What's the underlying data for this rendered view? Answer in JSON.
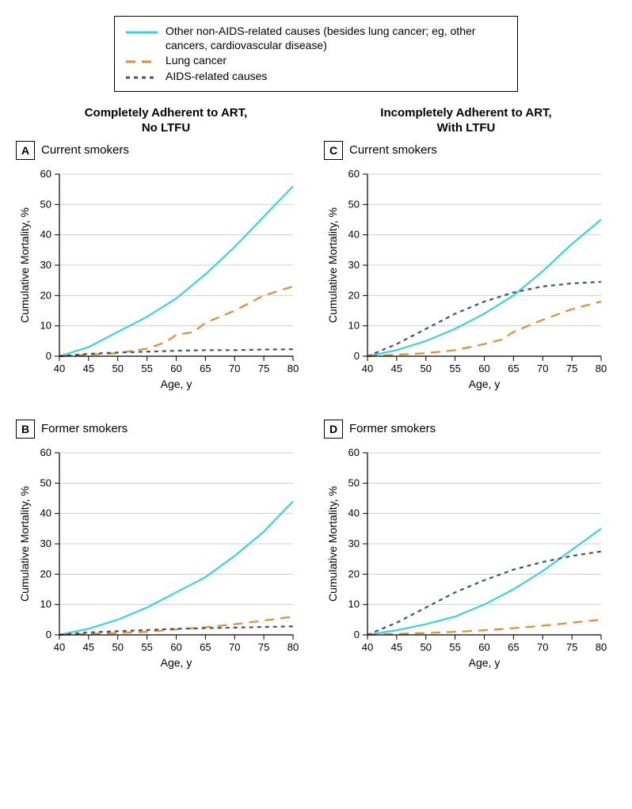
{
  "legend": {
    "items": [
      {
        "label": "Other non-AIDS-related causes (besides lung cancer; eg, other cancers, cardiovascular disease)",
        "color": "#33d4e8",
        "dash": ""
      },
      {
        "label": "Lung cancer",
        "color": "#e98a2e",
        "dash": "12,8"
      },
      {
        "label": "AIDS-related causes",
        "color": "#3e5a5a",
        "dash": "5,5"
      }
    ]
  },
  "columns": {
    "left": "Completely Adherent to ART,\nNo LTFU",
    "right": "Incompletely Adherent to ART,\nWith LTFU"
  },
  "axis": {
    "xlabel": "Age, y",
    "ylabel": "Cumulative Mortality, %",
    "xlim": [
      40,
      80
    ],
    "ylim": [
      0,
      60
    ],
    "xticks": [
      40,
      45,
      50,
      55,
      60,
      65,
      70,
      75,
      80
    ],
    "yticks": [
      0,
      10,
      20,
      30,
      40,
      50,
      60
    ],
    "grid_color": "#cfcfcf",
    "tick_fontsize": 13,
    "label_fontsize": 14,
    "background": "#ffffff"
  },
  "lineStyle": {
    "width": 2.2
  },
  "panels": [
    {
      "letter": "A",
      "title": "Current smokers",
      "series": [
        {
          "key": "other",
          "color": "#33d4e8",
          "dash": "",
          "pts": [
            [
              40,
              0
            ],
            [
              45,
              3
            ],
            [
              50,
              8
            ],
            [
              55,
              13
            ],
            [
              60,
              19
            ],
            [
              65,
              27
            ],
            [
              70,
              36
            ],
            [
              75,
              46
            ],
            [
              80,
              56
            ]
          ]
        },
        {
          "key": "lung",
          "color": "#e98a2e",
          "dash": "12,8",
          "pts": [
            [
              40,
              0
            ],
            [
              45,
              0.5
            ],
            [
              50,
              1
            ],
            [
              55,
              2.5
            ],
            [
              58,
              4.5
            ],
            [
              60,
              7
            ],
            [
              63,
              8
            ],
            [
              65,
              11
            ],
            [
              70,
              15
            ],
            [
              75,
              20
            ],
            [
              80,
              23
            ]
          ]
        },
        {
          "key": "aids",
          "color": "#3e5a5a",
          "dash": "5,5",
          "pts": [
            [
              40,
              0
            ],
            [
              45,
              0.8
            ],
            [
              50,
              1.2
            ],
            [
              55,
              1.5
            ],
            [
              60,
              1.8
            ],
            [
              65,
              2
            ],
            [
              70,
              2
            ],
            [
              75,
              2.2
            ],
            [
              80,
              2.3
            ]
          ]
        }
      ]
    },
    {
      "letter": "C",
      "title": "Current smokers",
      "series": [
        {
          "key": "other",
          "color": "#33d4e8",
          "dash": "",
          "pts": [
            [
              40,
              0
            ],
            [
              45,
              2
            ],
            [
              50,
              5
            ],
            [
              55,
              9
            ],
            [
              60,
              14
            ],
            [
              65,
              20
            ],
            [
              70,
              28
            ],
            [
              75,
              37
            ],
            [
              80,
              45
            ]
          ]
        },
        {
          "key": "aids",
          "color": "#3e5a5a",
          "dash": "5,5",
          "pts": [
            [
              40,
              0
            ],
            [
              45,
              4
            ],
            [
              50,
              9
            ],
            [
              55,
              14
            ],
            [
              60,
              18
            ],
            [
              65,
              21
            ],
            [
              70,
              23
            ],
            [
              75,
              24
            ],
            [
              80,
              24.5
            ]
          ]
        },
        {
          "key": "lung",
          "color": "#e98a2e",
          "dash": "12,8",
          "pts": [
            [
              40,
              0
            ],
            [
              45,
              0.5
            ],
            [
              50,
              1
            ],
            [
              55,
              2
            ],
            [
              60,
              4
            ],
            [
              63,
              5.5
            ],
            [
              65,
              8
            ],
            [
              70,
              12
            ],
            [
              75,
              15.5
            ],
            [
              80,
              18
            ]
          ]
        }
      ]
    },
    {
      "letter": "B",
      "title": "Former smokers",
      "series": [
        {
          "key": "other",
          "color": "#33d4e8",
          "dash": "",
          "pts": [
            [
              40,
              0
            ],
            [
              45,
              2
            ],
            [
              50,
              5
            ],
            [
              55,
              9
            ],
            [
              60,
              14
            ],
            [
              65,
              19
            ],
            [
              70,
              26
            ],
            [
              75,
              34
            ],
            [
              80,
              44
            ]
          ]
        },
        {
          "key": "lung",
          "color": "#e98a2e",
          "dash": "12,8",
          "pts": [
            [
              40,
              0
            ],
            [
              45,
              0.3
            ],
            [
              50,
              0.6
            ],
            [
              55,
              1
            ],
            [
              60,
              1.8
            ],
            [
              65,
              2.5
            ],
            [
              70,
              3.5
            ],
            [
              75,
              4.7
            ],
            [
              80,
              6
            ]
          ]
        },
        {
          "key": "aids",
          "color": "#3e5a5a",
          "dash": "5,5",
          "pts": [
            [
              40,
              0
            ],
            [
              45,
              0.8
            ],
            [
              50,
              1.2
            ],
            [
              55,
              1.6
            ],
            [
              60,
              2
            ],
            [
              65,
              2.2
            ],
            [
              70,
              2.4
            ],
            [
              75,
              2.6
            ],
            [
              80,
              2.8
            ]
          ]
        }
      ]
    },
    {
      "letter": "D",
      "title": "Former smokers",
      "series": [
        {
          "key": "other",
          "color": "#33d4e8",
          "dash": "",
          "pts": [
            [
              40,
              0
            ],
            [
              45,
              1.5
            ],
            [
              50,
              3.5
            ],
            [
              55,
              6
            ],
            [
              60,
              10
            ],
            [
              65,
              15
            ],
            [
              70,
              21
            ],
            [
              75,
              28
            ],
            [
              80,
              35
            ]
          ]
        },
        {
          "key": "aids",
          "color": "#3e5a5a",
          "dash": "5,5",
          "pts": [
            [
              40,
              0
            ],
            [
              45,
              4
            ],
            [
              50,
              9
            ],
            [
              55,
              14
            ],
            [
              60,
              18
            ],
            [
              65,
              21.5
            ],
            [
              70,
              24
            ],
            [
              75,
              26
            ],
            [
              80,
              27.5
            ]
          ]
        },
        {
          "key": "lung",
          "color": "#e98a2e",
          "dash": "12,8",
          "pts": [
            [
              40,
              0
            ],
            [
              45,
              0.3
            ],
            [
              50,
              0.6
            ],
            [
              55,
              1
            ],
            [
              60,
              1.5
            ],
            [
              65,
              2.2
            ],
            [
              70,
              3
            ],
            [
              75,
              4
            ],
            [
              80,
              5
            ]
          ]
        }
      ]
    }
  ]
}
